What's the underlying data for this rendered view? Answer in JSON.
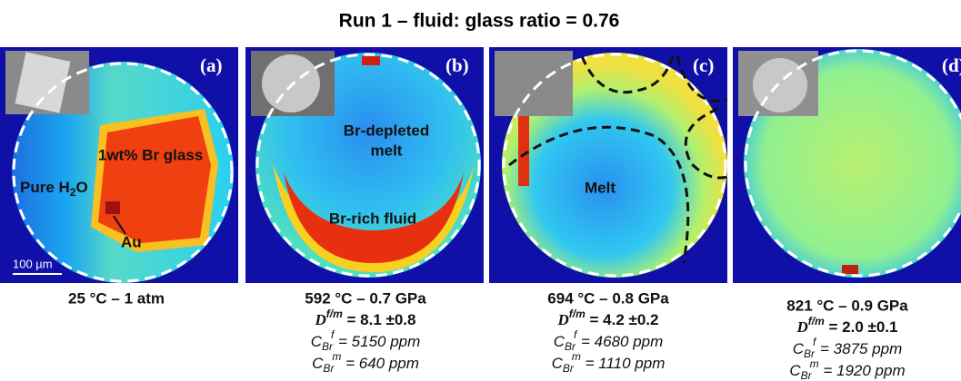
{
  "title": "Run 1 – fluid: glass ratio = 0.76",
  "panels": [
    {
      "letter": "(a)",
      "condition": "25 °C – 1 atm",
      "labels": [
        "1wt% Br glass",
        [
          "Pure H",
          "2",
          "O"
        ],
        "Au",
        "100 µm"
      ]
    },
    {
      "letter": "(b)",
      "condition": "592 °C – 0.7 GPa",
      "labels": [
        "Br-depleted",
        "melt",
        "Br-rich fluid"
      ],
      "partition": {
        "symbol": "D",
        "sup": "f/m",
        "text": " = 8.1 ±0.8"
      },
      "fluid": {
        "symbol": "C",
        "sub": "Br",
        "sup": "f",
        "text": " = 5150 ppm"
      },
      "melt": {
        "symbol": "C",
        "sub": "Br",
        "sup": "m",
        "text": " = 640 ppm"
      }
    },
    {
      "letter": "(c)",
      "condition": "694 °C – 0.8 GPa",
      "labels": [
        "Melt"
      ],
      "partition": {
        "symbol": "D",
        "sup": "f/m",
        "text": " = 4.2 ±0.2"
      },
      "fluid": {
        "symbol": "C",
        "sub": "Br",
        "sup": "f",
        "text": " = 4680 ppm"
      },
      "melt": {
        "symbol": "C",
        "sub": "Br",
        "sup": "m",
        "text": " = 1110 ppm"
      }
    },
    {
      "letter": "(d)",
      "condition": "821 °C – 0.9 GPa",
      "labels": [],
      "partition": {
        "symbol": "D",
        "sup": "f/m",
        "text": " = 2.0 ±0.1"
      },
      "fluid": {
        "symbol": "C",
        "sub": "Br",
        "sup": "f",
        "text": " = 3875 ppm"
      },
      "melt": {
        "symbol": "C",
        "sub": "Br",
        "sup": "m",
        "text": " = 1920 ppm"
      }
    }
  ]
}
